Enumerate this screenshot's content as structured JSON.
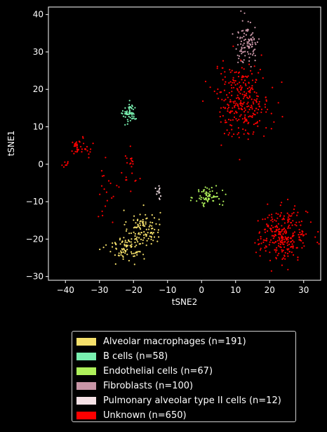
{
  "chart_data": {
    "type": "scatter",
    "title": "",
    "xlabel": "tSNE2",
    "ylabel": "tSNE1",
    "xlim": [
      -45,
      35
    ],
    "ylim": [
      -31,
      42
    ],
    "xticks": [
      -40,
      -30,
      -20,
      -10,
      0,
      10,
      20,
      30
    ],
    "yticks": [
      -30,
      -20,
      -10,
      0,
      10,
      20,
      30,
      40
    ],
    "xtick_labels": [
      "−40",
      "−30",
      "−20",
      "−10",
      "0",
      "10",
      "20",
      "30"
    ],
    "ytick_labels": [
      "−30",
      "−20",
      "−10",
      "0",
      "10",
      "20",
      "30",
      "40"
    ],
    "grid": false,
    "legend_position": "below",
    "series": [
      {
        "name": "Alveolar macrophages (n=191)",
        "color": "#f5e06b",
        "clusters": [
          {
            "cx": -17,
            "cy": -17,
            "sx": 2.4,
            "sy": 2.4,
            "n": 95
          },
          {
            "cx": -22,
            "cy": -22,
            "sx": 2.8,
            "sy": 1.8,
            "n": 96
          }
        ]
      },
      {
        "name": "B cells (n=58)",
        "color": "#79f0b0",
        "clusters": [
          {
            "cx": -21,
            "cy": 13.5,
            "sx": 1.0,
            "sy": 1.3,
            "n": 58
          }
        ]
      },
      {
        "name": "Endothelial cells (n=67)",
        "color": "#aef05a",
        "clusters": [
          {
            "cx": 2,
            "cy": -8.5,
            "sx": 2.0,
            "sy": 1.4,
            "n": 67
          }
        ]
      },
      {
        "name": "Fibroblasts (n=100)",
        "color": "#c895a6",
        "clusters": [
          {
            "cx": 13.5,
            "cy": 32.5,
            "sx": 1.8,
            "sy": 3.0,
            "n": 100
          }
        ]
      },
      {
        "name": "Pulmonary alveolar type II cells (n=12)",
        "color": "#f5e1e6",
        "clusters": [
          {
            "cx": -12.5,
            "cy": -8,
            "sx": 0.4,
            "sy": 1.0,
            "n": 12
          }
        ]
      },
      {
        "name": "Unknown (n=650)",
        "color": "#ff0000",
        "clusters": [
          {
            "cx": 12,
            "cy": 17,
            "sx": 4.0,
            "sy": 4.8,
            "n": 290
          },
          {
            "cx": 24,
            "cy": -19,
            "sx": 3.6,
            "sy": 3.4,
            "n": 270
          },
          {
            "cx": -36,
            "cy": 4.5,
            "sx": 1.6,
            "sy": 1.2,
            "n": 40
          },
          {
            "cx": -40,
            "cy": 0,
            "sx": 0.7,
            "sy": 0.6,
            "n": 8
          },
          {
            "cx": -21,
            "cy": -2,
            "sx": 1.4,
            "sy": 3.5,
            "n": 22
          },
          {
            "cx": -27,
            "cy": -6,
            "sx": 1.5,
            "sy": 3.5,
            "n": 20
          }
        ]
      }
    ]
  }
}
